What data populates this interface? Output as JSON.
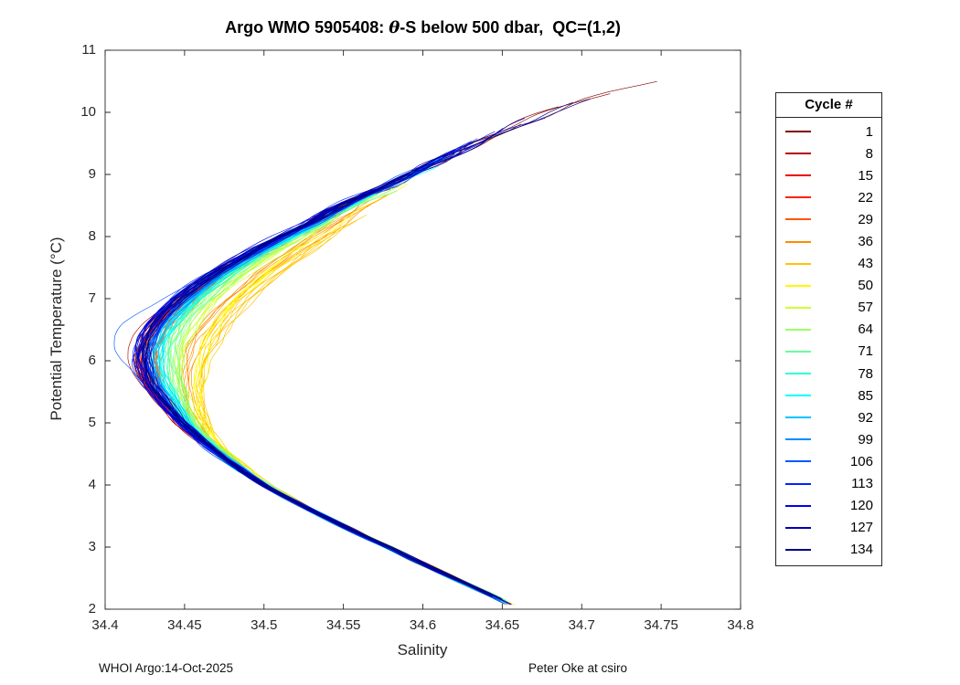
{
  "page": {
    "title_prefix": "Argo WMO 5905408: ",
    "title_theta": "θ",
    "title_suffix": "-S below 500 dbar,  QC=(1,2)",
    "footer_left": "WHOI Argo:14-Oct-2025",
    "footer_right": "Peter Oke at csiro"
  },
  "chart_data": {
    "type": "line",
    "title": "Argo WMO 5905408: θ-S below 500 dbar,  QC=(1,2)",
    "xlabel": "Salinity",
    "ylabel": "Potential Temperature (°C)",
    "xlim": [
      34.4,
      34.8
    ],
    "ylim": [
      2,
      11
    ],
    "xticks": [
      34.4,
      34.45,
      34.5,
      34.55,
      34.6,
      34.65,
      34.7,
      34.75,
      34.8
    ],
    "xtick_labels": [
      "34.4",
      "34.45",
      "34.5",
      "34.55",
      "34.6",
      "34.65",
      "34.7",
      "34.75",
      "34.8"
    ],
    "yticks": [
      2,
      3,
      4,
      5,
      6,
      7,
      8,
      9,
      10,
      11
    ],
    "ytick_labels": [
      "2",
      "3",
      "4",
      "5",
      "6",
      "7",
      "8",
      "9",
      "10",
      "11"
    ],
    "grid": false,
    "axis_color": "#262626",
    "legend_title": "Cycle #",
    "legend_position": "right-outside",
    "base_curve_theta_salinity": [
      [
        2.05,
        34.656
      ],
      [
        2.2,
        34.645
      ],
      [
        2.4,
        34.628
      ],
      [
        2.6,
        34.611
      ],
      [
        2.8,
        34.594
      ],
      [
        3.0,
        34.578
      ],
      [
        3.2,
        34.561
      ],
      [
        3.4,
        34.545
      ],
      [
        3.6,
        34.529
      ],
      [
        3.8,
        34.514
      ],
      [
        4.0,
        34.5
      ],
      [
        4.2,
        34.488
      ],
      [
        4.4,
        34.477
      ],
      [
        4.6,
        34.467
      ],
      [
        4.8,
        34.458
      ],
      [
        5.0,
        34.45
      ],
      [
        5.2,
        34.444
      ],
      [
        5.4,
        34.439
      ],
      [
        5.6,
        34.434
      ],
      [
        5.8,
        34.431
      ],
      [
        6.0,
        34.429
      ],
      [
        6.2,
        34.429
      ],
      [
        6.4,
        34.431
      ],
      [
        6.6,
        34.435
      ],
      [
        6.8,
        34.441
      ],
      [
        7.0,
        34.449
      ],
      [
        7.2,
        34.459
      ],
      [
        7.4,
        34.47
      ],
      [
        7.6,
        34.483
      ],
      [
        7.8,
        34.497
      ],
      [
        8.0,
        34.512
      ],
      [
        8.2,
        34.528
      ],
      [
        8.4,
        34.542
      ],
      [
        8.6,
        34.558
      ],
      [
        8.8,
        34.576
      ],
      [
        9.0,
        34.592
      ],
      [
        9.2,
        34.608
      ],
      [
        9.4,
        34.624
      ],
      [
        9.6,
        34.641
      ],
      [
        9.8,
        34.659
      ],
      [
        10.0,
        34.679
      ],
      [
        10.2,
        34.7
      ],
      [
        10.35,
        34.72
      ],
      [
        10.55,
        34.755
      ]
    ],
    "series": [
      {
        "name": "1",
        "color": "#800000",
        "off": 0.004,
        "off_min": -0.008,
        "t_top": 10.55
      },
      {
        "name": "8",
        "color": "#B50000",
        "off": 0.002,
        "off_min": -0.01,
        "t_top": 8.9,
        "spike": {
          "theta": 6.25,
          "amp": -0.007,
          "sigma": 0.5
        }
      },
      {
        "name": "15",
        "color": "#EB0000",
        "off": 0.003,
        "off_min": -0.009,
        "t_top": 9.0
      },
      {
        "name": "22",
        "color": "#FF2200",
        "off": 0.005,
        "off_min": -0.007,
        "t_top": 8.8
      },
      {
        "name": "29",
        "color": "#FF5700",
        "off": 0.012,
        "off_min": -0.004,
        "t_top": 9.0
      },
      {
        "name": "36",
        "color": "#FF8D00",
        "off": 0.03,
        "off_min": 0.002,
        "t_top": 8.8
      },
      {
        "name": "43",
        "color": "#FFC300",
        "off": 0.04,
        "off_min": 0.006,
        "t_top": 8.6
      },
      {
        "name": "50",
        "color": "#FFF800",
        "off": 0.03,
        "off_min": 0.008,
        "t_top": 9.0
      },
      {
        "name": "57",
        "color": "#D0FF2F",
        "off": 0.02,
        "off_min": 0.006,
        "t_top": 9.1
      },
      {
        "name": "64",
        "color": "#9AFF65",
        "off": 0.013,
        "off_min": 0.005,
        "t_top": 9.35
      },
      {
        "name": "71",
        "color": "#65FF9A",
        "off": 0.011,
        "off_min": 0.004,
        "t_top": 9.4
      },
      {
        "name": "78",
        "color": "#2FFFD0",
        "off": 0.009,
        "off_min": 0.002,
        "t_top": 9.25
      },
      {
        "name": "85",
        "color": "#00FFFF",
        "off": 0.007,
        "off_min": 0.0,
        "t_top": 9.3
      },
      {
        "name": "92",
        "color": "#00C3FF",
        "off": 0.005,
        "off_min": -0.001,
        "t_top": 9.4
      },
      {
        "name": "99",
        "color": "#008DFF",
        "off": 0.003,
        "off_min": -0.002,
        "t_top": 9.5
      },
      {
        "name": "106",
        "color": "#0057FF",
        "off": 0.001,
        "off_min": -0.003,
        "t_top": 9.65,
        "spike": {
          "theta": 6.45,
          "amp": -0.022,
          "sigma": 0.42
        }
      },
      {
        "name": "113",
        "color": "#0022FF",
        "off": -0.001,
        "off_min": -0.004,
        "t_top": 9.8
      },
      {
        "name": "120",
        "color": "#0000EB",
        "off": -0.003,
        "off_min": -0.005,
        "t_top": 9.9
      },
      {
        "name": "127",
        "color": "#0000B5",
        "off": -0.003,
        "off_min": -0.004,
        "t_top": 10.05
      },
      {
        "name": "134",
        "color": "#000080",
        "off": -0.002,
        "off_min": -0.003,
        "t_top": 10.3
      }
    ],
    "lines_per_series": 7,
    "noise": {
      "constant_spread": 0.005,
      "offset_spread": 0.006,
      "offset_min_spread": 0.005,
      "wiggle_amp1": 0.0014,
      "wiggle_amp2": 0.0009,
      "top_amp_growth": 1.0,
      "deep_amp_scale": 0.55
    },
    "seed": 7
  }
}
